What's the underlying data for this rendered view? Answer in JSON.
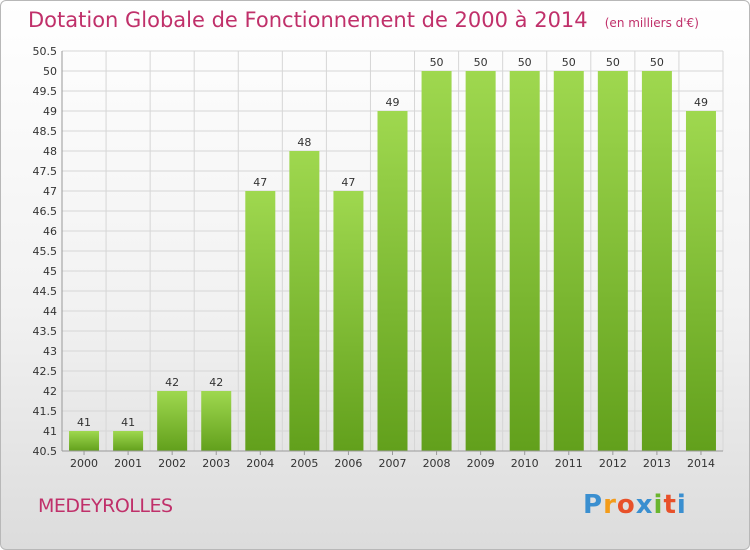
{
  "chart_data": {
    "type": "bar",
    "title": "Dotation Globale de Fonctionnement de 2000 à 2014",
    "unit": "(en milliers d'€)",
    "categories": [
      "2000",
      "2001",
      "2002",
      "2003",
      "2004",
      "2005",
      "2006",
      "2007",
      "2008",
      "2009",
      "2010",
      "2011",
      "2012",
      "2013",
      "2014"
    ],
    "values": [
      41,
      41,
      42,
      42,
      47,
      48,
      47,
      49,
      50,
      50,
      50,
      50,
      50,
      50,
      49
    ],
    "ylim": [
      40.5,
      50.5
    ],
    "ytick_step": 0.5,
    "yticks": [
      "40.5",
      "41",
      "41.5",
      "42",
      "42.5",
      "43",
      "43.5",
      "44",
      "44.5",
      "45",
      "45.5",
      "46",
      "46.5",
      "47",
      "47.5",
      "48",
      "48.5",
      "49",
      "49.5",
      "50",
      "50.5"
    ],
    "grid": true,
    "bar_color": "#8fce45",
    "bar_color_dark": "#6aa521"
  },
  "commune": "MEDEYROLLES",
  "logo": {
    "letters": [
      "P",
      "r",
      "o",
      "x",
      "i",
      "t",
      "i"
    ],
    "colors": [
      "#3a8fd0",
      "#f39c1a",
      "#e8512a",
      "#3a8fd0",
      "#6ab52e",
      "#e8512a",
      "#3a8fd0"
    ]
  }
}
